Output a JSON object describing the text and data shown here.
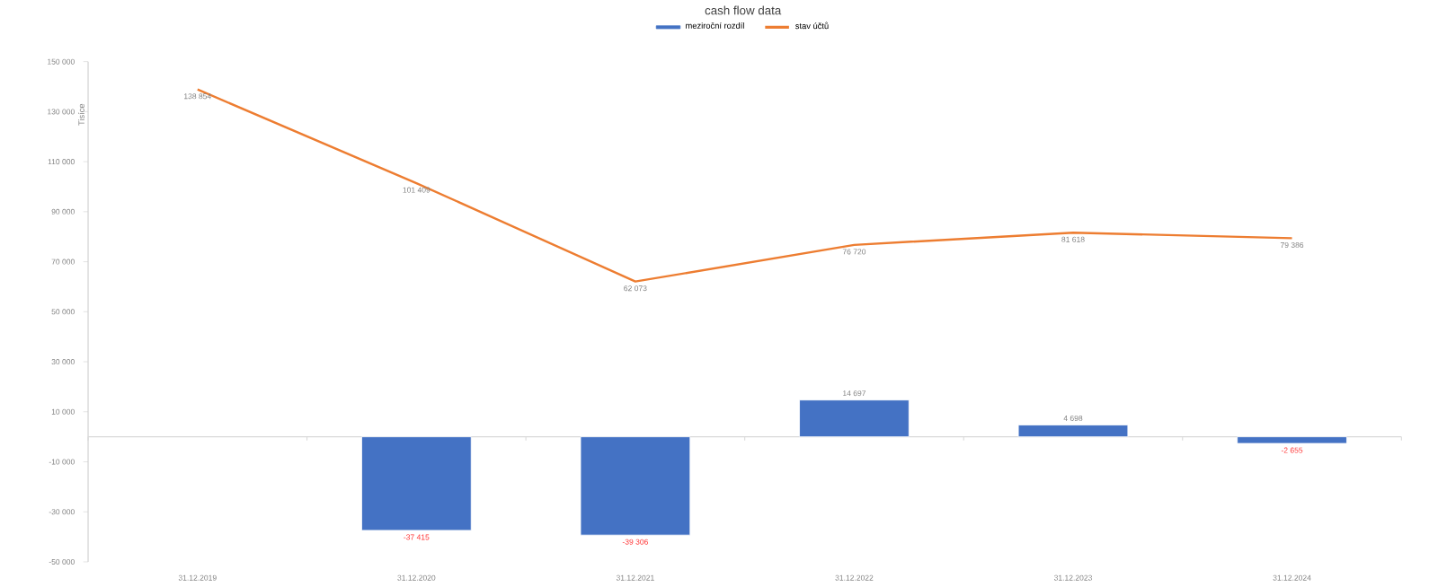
{
  "chart_data": {
    "type": "bar",
    "title": "cash flow data",
    "ylabel": "Tisíce",
    "categories": [
      "31.12.2019",
      "31.12.2020",
      "31.12.2021",
      "31.12.2022",
      "31.12.2023",
      "31.12.2024"
    ],
    "series": [
      {
        "name": "meziroční rozdíl",
        "color": "#4472c4",
        "values": [
          null,
          -37415,
          -39306,
          14697,
          4698,
          -2655
        ],
        "value_labels": [
          null,
          "-37 415",
          "-39 306",
          "14 697",
          "4 698",
          "-2 655"
        ]
      },
      {
        "name": "stav účtů",
        "type": "line",
        "color": "#ed7d31",
        "values": [
          138854,
          101409,
          62073,
          76720,
          81618,
          79386
        ],
        "value_labels": [
          "138 854",
          "101 409",
          "62 073",
          "76 720",
          "81 618",
          "79 386"
        ]
      }
    ],
    "ylim": [
      -50000,
      150000
    ],
    "yticks": [
      {
        "value": -50000,
        "label": "-50 000"
      },
      {
        "value": -30000,
        "label": "-30 000"
      },
      {
        "value": -10000,
        "label": "-10 000"
      },
      {
        "value": 10000,
        "label": "10 000"
      },
      {
        "value": 30000,
        "label": "30 000"
      },
      {
        "value": 50000,
        "label": "50 000"
      },
      {
        "value": 70000,
        "label": "70 000"
      },
      {
        "value": 90000,
        "label": "90 000"
      },
      {
        "value": 110000,
        "label": "110 000"
      },
      {
        "value": 130000,
        "label": "130 000"
      },
      {
        "value": 150000,
        "label": "150 000"
      }
    ],
    "grid": false,
    "legend": "top"
  }
}
